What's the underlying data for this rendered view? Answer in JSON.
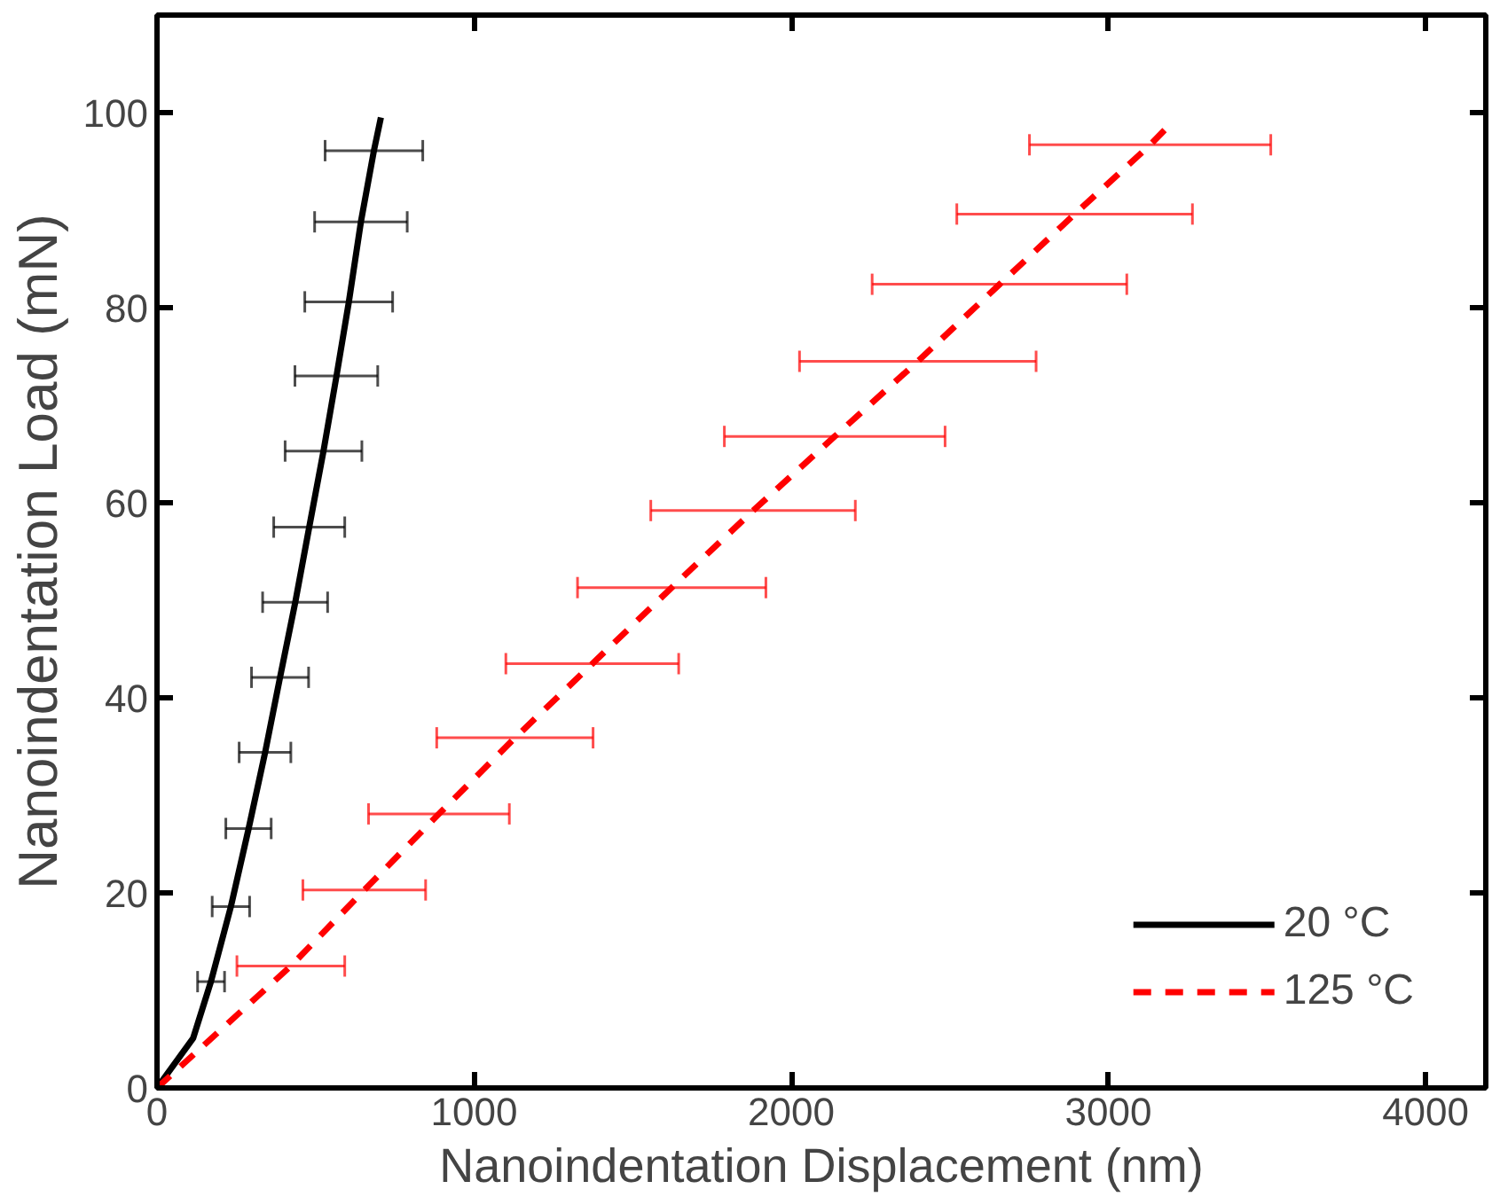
{
  "chart_data": {
    "type": "line",
    "xlabel": "Nanoindentation Displacement (nm)",
    "ylabel": "Nanoindentation Load (mN)",
    "xlim": [
      0,
      4190
    ],
    "ylim": [
      0,
      110
    ],
    "xticks": [
      0,
      1000,
      2000,
      3000,
      4000
    ],
    "yticks": [
      0,
      20,
      40,
      60,
      80,
      100
    ],
    "grid": false,
    "legend": "bottom right",
    "series": [
      {
        "name": "20 °C",
        "color": "#000000",
        "line_style": "solid",
        "x": [
          0,
          114,
          170,
          233,
          289,
          341,
          388,
          436,
          480,
          525,
          566,
          605,
          643,
          684,
          706
        ],
        "values": [
          0,
          5.1,
          10.9,
          18.6,
          26.6,
          34.4,
          42.1,
          49.8,
          57.5,
          65.3,
          73.0,
          80.6,
          88.8,
          96.1,
          99.5
        ],
        "xerrors": [
          null,
          null,
          [
            128,
            213
          ],
          [
            174,
            292
          ],
          [
            217,
            360
          ],
          [
            259,
            422
          ],
          [
            298,
            478
          ],
          [
            333,
            538
          ],
          [
            368,
            592
          ],
          [
            404,
            646
          ],
          [
            435,
            696
          ],
          [
            466,
            743
          ],
          [
            497,
            789
          ],
          [
            530,
            838
          ],
          null
        ]
      },
      {
        "name": "125 °C",
        "color": "#ff0000",
        "line_style": "dashed",
        "x": [
          0,
          422,
          654,
          889,
          1129,
          1373,
          1623,
          1880,
          2137,
          2399,
          2657,
          2894,
          3132,
          3177
        ],
        "values": [
          0,
          12.5,
          20.3,
          28.1,
          35.9,
          43.5,
          51.3,
          59.2,
          66.8,
          74.5,
          82.4,
          89.6,
          96.7,
          98.2
        ],
        "xerrors": [
          null,
          [
            252,
            592
          ],
          [
            460,
            847
          ],
          [
            667,
            1111
          ],
          [
            882,
            1375
          ],
          [
            1100,
            1645
          ],
          [
            1326,
            1920
          ],
          [
            1557,
            2202
          ],
          [
            1789,
            2485
          ],
          [
            2026,
            2772
          ],
          [
            2255,
            3058
          ],
          [
            2522,
            3265
          ],
          [
            2751,
            3512
          ],
          null
        ]
      }
    ]
  }
}
